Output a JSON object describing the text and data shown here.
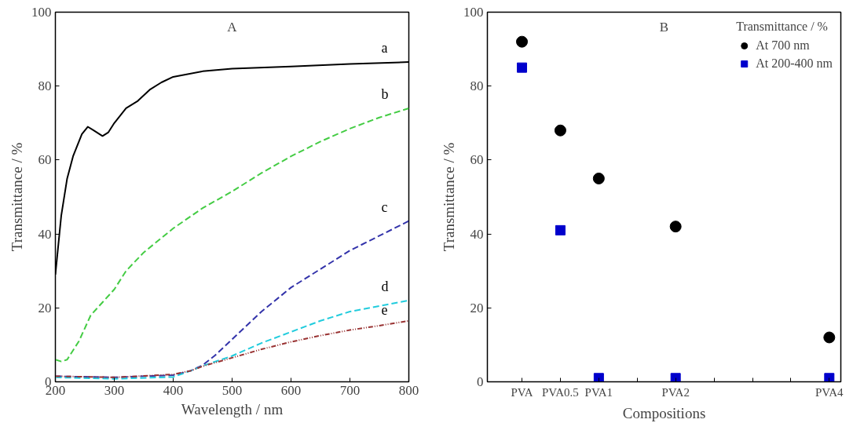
{
  "chart_data": [
    {
      "type": "line",
      "title": "A",
      "xlabel": "Wavelength / nm",
      "ylabel": "Transmittance / %",
      "xlim": [
        200,
        800
      ],
      "ylim": [
        0,
        100
      ],
      "xticks": [
        200,
        300,
        400,
        500,
        600,
        700,
        800
      ],
      "yticks": [
        0,
        20,
        40,
        60,
        80,
        100
      ],
      "grid": false,
      "legend": false,
      "marker": "none",
      "series": [
        {
          "name": "a",
          "color": "#000000",
          "line_style": "solid",
          "x": [
            200,
            210,
            220,
            230,
            245,
            255,
            265,
            280,
            290,
            300,
            320,
            340,
            360,
            380,
            400,
            450,
            500,
            600,
            700,
            800
          ],
          "values": [
            29,
            45,
            55,
            61,
            67,
            69,
            68,
            66.5,
            67.5,
            70,
            74,
            76,
            79,
            81,
            82.5,
            84,
            84.7,
            85.3,
            86,
            86.5
          ]
        },
        {
          "name": "b",
          "color": "#44cc44",
          "line_style": "dashed",
          "x": [
            200,
            210,
            220,
            240,
            260,
            280,
            300,
            320,
            350,
            400,
            450,
            500,
            550,
            600,
            650,
            700,
            750,
            800
          ],
          "values": [
            6,
            5.5,
            6,
            11,
            18,
            21.5,
            25,
            30,
            35,
            41.5,
            47,
            51.5,
            56.5,
            61,
            65,
            68.5,
            71.5,
            74
          ]
        },
        {
          "name": "c",
          "color": "#3333aa",
          "line_style": "dashed",
          "x": [
            200,
            300,
            400,
            430,
            450,
            470,
            500,
            550,
            600,
            650,
            700,
            750,
            800
          ],
          "values": [
            1.5,
            1.2,
            1.8,
            3,
            4.5,
            7,
            11.5,
            19,
            25.5,
            30.5,
            35.5,
            39.5,
            43.5
          ]
        },
        {
          "name": "d",
          "color": "#22ccdd",
          "line_style": "dashed",
          "x": [
            200,
            300,
            400,
            430,
            450,
            500,
            550,
            600,
            650,
            700,
            750,
            800
          ],
          "values": [
            1.2,
            0.8,
            1.3,
            3,
            4.3,
            7,
            10.5,
            13.5,
            16.5,
            19,
            20.5,
            22
          ]
        },
        {
          "name": "e",
          "color": "#993333",
          "line_style": "dotted",
          "x": [
            200,
            300,
            400,
            430,
            450,
            500,
            550,
            600,
            650,
            700,
            750,
            800
          ],
          "values": [
            1.5,
            1.2,
            2,
            3,
            4.2,
            6.5,
            8.8,
            10.8,
            12.5,
            14,
            15.2,
            16.5
          ]
        }
      ]
    },
    {
      "type": "scatter",
      "title": "B",
      "xlabel": "Compositions",
      "ylabel": "Transmittance / %",
      "legend_title": "Transmittance / %",
      "legend": "top right",
      "grid": false,
      "categories": [
        "PVA",
        "PVA0.5",
        "PVA1",
        null,
        "PVA2",
        null,
        null,
        null,
        "PVA4"
      ],
      "ylim": [
        0,
        100
      ],
      "yticks": [
        0,
        20,
        40,
        60,
        80,
        100
      ],
      "series": [
        {
          "name": "At 700 nm",
          "color": "#000000",
          "marker": "circle",
          "values": [
            92,
            68,
            55,
            null,
            42,
            null,
            null,
            null,
            12
          ]
        },
        {
          "name": "At 200-400 nm",
          "color": "#0000cc",
          "marker": "square",
          "values": [
            85,
            41,
            1,
            null,
            1,
            null,
            null,
            null,
            1
          ]
        }
      ]
    }
  ]
}
